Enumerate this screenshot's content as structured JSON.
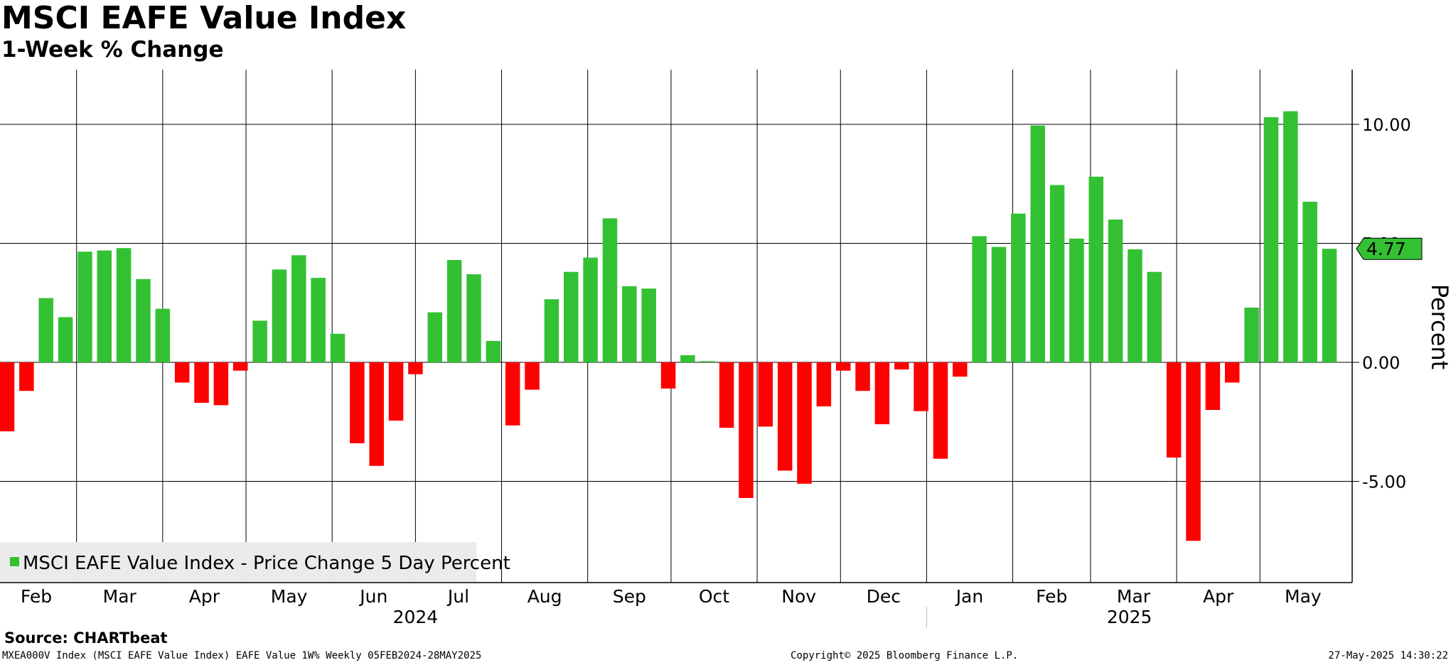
{
  "chart_data": {
    "type": "bar",
    "title": "MSCI EAFE Value Index",
    "subtitle": "1-Week % Change",
    "ylabel": "Percent",
    "ylim": [
      -9.0,
      12.0
    ],
    "y_ticks": [
      {
        "value": 10,
        "label": "10.00"
      },
      {
        "value": 5,
        "label": "5.00"
      },
      {
        "value": 0,
        "label": "0.00"
      },
      {
        "value": -5,
        "label": "-5.00"
      }
    ],
    "last_value_label": "4.77",
    "last_value": 4.77,
    "grid": true,
    "legend": {
      "position": "bottom-left",
      "label": "MSCI EAFE Value Index - Price Change 5 Day Percent"
    },
    "colors": {
      "positive": "#33c133",
      "negative": "#ff0000",
      "legend_marker": "#33c133",
      "last_value_box": "#33c133",
      "legend_bg": "#ebebeb"
    },
    "month_ticks": [
      {
        "label": "Feb",
        "date": "2024-02-01"
      },
      {
        "label": "Mar",
        "date": "2024-03-01"
      },
      {
        "label": "Apr",
        "date": "2024-04-01"
      },
      {
        "label": "May",
        "date": "2024-05-01"
      },
      {
        "label": "Jun",
        "date": "2024-06-01"
      },
      {
        "label": "Jul",
        "date": "2024-07-01"
      },
      {
        "label": "Aug",
        "date": "2024-08-01"
      },
      {
        "label": "Sep",
        "date": "2024-09-01"
      },
      {
        "label": "Oct",
        "date": "2024-10-01"
      },
      {
        "label": "Nov",
        "date": "2024-11-01"
      },
      {
        "label": "Dec",
        "date": "2024-12-01"
      },
      {
        "label": "Jan",
        "date": "2025-01-01"
      },
      {
        "label": "Feb",
        "date": "2025-02-01"
      },
      {
        "label": "Mar",
        "date": "2025-03-01"
      },
      {
        "label": "Apr",
        "date": "2025-04-01"
      },
      {
        "label": "May",
        "date": "2025-05-01"
      }
    ],
    "years": [
      {
        "label": "2024",
        "date": "2024-07-01"
      },
      {
        "label": "2025",
        "date": "2025-03-15"
      }
    ],
    "series": [
      {
        "name": "MSCI EAFE Value Index - Price Change 5 Day Percent",
        "x": [
          "2024-02-05",
          "2024-02-12",
          "2024-02-19",
          "2024-02-26",
          "2024-03-04",
          "2024-03-11",
          "2024-03-18",
          "2024-03-25",
          "2024-04-01",
          "2024-04-08",
          "2024-04-15",
          "2024-04-22",
          "2024-04-29",
          "2024-05-06",
          "2024-05-13",
          "2024-05-20",
          "2024-05-27",
          "2024-06-03",
          "2024-06-10",
          "2024-06-17",
          "2024-06-24",
          "2024-07-01",
          "2024-07-08",
          "2024-07-15",
          "2024-07-22",
          "2024-07-29",
          "2024-08-05",
          "2024-08-12",
          "2024-08-19",
          "2024-08-26",
          "2024-09-02",
          "2024-09-09",
          "2024-09-16",
          "2024-09-23",
          "2024-09-30",
          "2024-10-07",
          "2024-10-14",
          "2024-10-21",
          "2024-10-28",
          "2024-11-04",
          "2024-11-11",
          "2024-11-18",
          "2024-11-25",
          "2024-12-02",
          "2024-12-09",
          "2024-12-16",
          "2024-12-23",
          "2024-12-30",
          "2025-01-06",
          "2025-01-13",
          "2025-01-20",
          "2025-01-27",
          "2025-02-03",
          "2025-02-10",
          "2025-02-17",
          "2025-02-24",
          "2025-03-03",
          "2025-03-10",
          "2025-03-17",
          "2025-03-24",
          "2025-03-31",
          "2025-04-07",
          "2025-04-14",
          "2025-04-21",
          "2025-04-28",
          "2025-05-05",
          "2025-05-12",
          "2025-05-19",
          "2025-05-26"
        ],
        "values": [
          -2.9,
          -1.2,
          2.7,
          1.9,
          4.65,
          4.7,
          4.8,
          3.5,
          2.25,
          -0.85,
          -1.7,
          -1.8,
          -0.35,
          1.75,
          3.9,
          4.5,
          3.55,
          1.2,
          -3.4,
          -4.35,
          -2.45,
          -0.5,
          2.1,
          4.3,
          3.7,
          0.9,
          -2.65,
          -1.15,
          2.65,
          3.8,
          4.4,
          6.05,
          3.2,
          3.1,
          -1.1,
          0.3,
          0.05,
          -2.75,
          -5.7,
          -2.7,
          -4.55,
          -5.1,
          -1.85,
          -0.35,
          -1.2,
          -2.6,
          -0.3,
          -2.05,
          -4.05,
          -0.6,
          5.3,
          4.85,
          6.25,
          9.95,
          7.45,
          5.2,
          7.8,
          6.0,
          4.75,
          3.8,
          -4.0,
          -7.5,
          -2.0,
          -0.85,
          2.3,
          10.3,
          10.55,
          6.75,
          4.77
        ]
      }
    ]
  },
  "source_label": "Source: CHARTbeat",
  "footer": {
    "left": "MXEA000V Index (MSCI EAFE Value Index) EAFE Value 1W% Weekly 05FEB2024-28MAY2025",
    "center": "Copyright© 2025 Bloomberg Finance L.P.",
    "right": "27-May-2025 14:30:22"
  }
}
